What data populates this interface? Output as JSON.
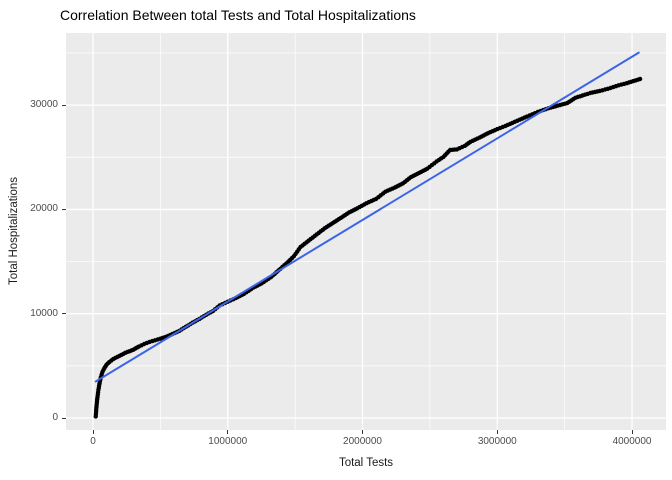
{
  "colors": {
    "page_bg": "#FFFFFF",
    "panel_bg": "#EBEBEB",
    "grid_major": "#FFFFFF",
    "grid_minor": "#FFFFFF",
    "point": "#000000",
    "trend_line": "#3C64E6",
    "tick_text": "#4D4D4D",
    "axis_title_text": "#1A1A1A",
    "title_text": "#000000"
  },
  "chart_data": {
    "type": "scatter",
    "title": "Correlation Between total Tests and Total Hospitalizations",
    "xlabel": "Total Tests",
    "ylabel": "Total Hospitalizations",
    "grid": true,
    "legend_position": "none",
    "xlim": [
      -200400,
      4252000
    ],
    "ylim": [
      -1150,
      36915
    ],
    "x_ticks": [
      0,
      1000000,
      2000000,
      3000000,
      4000000
    ],
    "x_tick_labels": [
      "0",
      "1000000",
      "2000000",
      "3000000",
      "4000000"
    ],
    "y_ticks": [
      0,
      10000,
      20000,
      30000
    ],
    "y_tick_labels": [
      "0",
      "10000",
      "20000",
      "30000"
    ],
    "x_minor_ticks": [
      500000,
      1500000,
      2500000,
      3500000
    ],
    "y_minor_ticks": [
      5000,
      15000,
      25000,
      35000
    ],
    "series": [
      {
        "name": "cumulative-observations",
        "type": "scatter",
        "color": "#000000",
        "points": [
          [
            20000,
            150
          ],
          [
            24000,
            800
          ],
          [
            28000,
            1400
          ],
          [
            33000,
            2000
          ],
          [
            40000,
            2700
          ],
          [
            48000,
            3300
          ],
          [
            58000,
            3900
          ],
          [
            70000,
            4400
          ],
          [
            85000,
            4800
          ],
          [
            100000,
            5100
          ],
          [
            120000,
            5350
          ],
          [
            150000,
            5650
          ],
          [
            180000,
            5850
          ],
          [
            210000,
            6050
          ],
          [
            240000,
            6250
          ],
          [
            270000,
            6400
          ],
          [
            300000,
            6550
          ],
          [
            340000,
            6850
          ],
          [
            380000,
            7100
          ],
          [
            420000,
            7300
          ],
          [
            460000,
            7450
          ],
          [
            500000,
            7600
          ],
          [
            545000,
            7800
          ],
          [
            590000,
            8050
          ],
          [
            640000,
            8350
          ],
          [
            690000,
            8750
          ],
          [
            740000,
            9150
          ],
          [
            790000,
            9500
          ],
          [
            840000,
            9900
          ],
          [
            890000,
            10250
          ],
          [
            940000,
            10800
          ],
          [
            1000000,
            11150
          ],
          [
            1060000,
            11500
          ],
          [
            1120000,
            11900
          ],
          [
            1190000,
            12500
          ],
          [
            1250000,
            12900
          ],
          [
            1320000,
            13500
          ],
          [
            1390000,
            14300
          ],
          [
            1450000,
            15000
          ],
          [
            1490000,
            15500
          ],
          [
            1540000,
            16400
          ],
          [
            1600000,
            17000
          ],
          [
            1660000,
            17600
          ],
          [
            1720000,
            18200
          ],
          [
            1780000,
            18700
          ],
          [
            1840000,
            19200
          ],
          [
            1900000,
            19700
          ],
          [
            1960000,
            20100
          ],
          [
            2030000,
            20600
          ],
          [
            2100000,
            21000
          ],
          [
            2170000,
            21700
          ],
          [
            2240000,
            22100
          ],
          [
            2300000,
            22500
          ],
          [
            2360000,
            23100
          ],
          [
            2420000,
            23500
          ],
          [
            2480000,
            23900
          ],
          [
            2550000,
            24600
          ],
          [
            2600000,
            25030
          ],
          [
            2650000,
            25700
          ],
          [
            2700000,
            25750
          ],
          [
            2760000,
            26100
          ],
          [
            2800000,
            26470
          ],
          [
            2870000,
            26900
          ],
          [
            2930000,
            27300
          ],
          [
            3000000,
            27700
          ],
          [
            3060000,
            28000
          ],
          [
            3130000,
            28400
          ],
          [
            3220000,
            28900
          ],
          [
            3300000,
            29340
          ],
          [
            3380000,
            29700
          ],
          [
            3450000,
            29950
          ],
          [
            3520000,
            30200
          ],
          [
            3580000,
            30700
          ],
          [
            3650000,
            31000
          ],
          [
            3690000,
            31160
          ],
          [
            3760000,
            31350
          ],
          [
            3840000,
            31640
          ],
          [
            3900000,
            31900
          ],
          [
            3960000,
            32100
          ],
          [
            4010000,
            32300
          ],
          [
            4060000,
            32500
          ]
        ]
      },
      {
        "name": "linear-fit",
        "type": "line",
        "color": "#3C64E6",
        "points": [
          [
            20000,
            3500
          ],
          [
            4050000,
            35030
          ]
        ]
      }
    ]
  }
}
